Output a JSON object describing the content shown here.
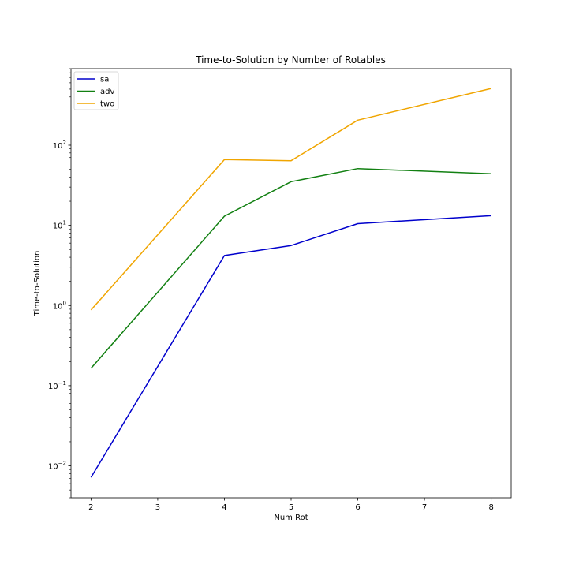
{
  "chart_data": {
    "type": "line",
    "title": "Time-to-Solution by Number of Rotables",
    "xlabel": "Num Rot",
    "ylabel": "Time-to-Solution",
    "yscale": "log",
    "xlim": [
      1.7,
      8.3
    ],
    "ylim": [
      0.004,
      900
    ],
    "x_ticks": [
      2,
      3,
      4,
      5,
      6,
      7,
      8
    ],
    "y_ticks": [
      {
        "value": 0.01,
        "base": "10",
        "exp": "−2"
      },
      {
        "value": 0.1,
        "base": "10",
        "exp": "−1"
      },
      {
        "value": 1,
        "base": "10",
        "exp": "0"
      },
      {
        "value": 10,
        "base": "10",
        "exp": "1"
      },
      {
        "value": 100,
        "base": "10",
        "exp": "2"
      }
    ],
    "grid": false,
    "legend_position": "top-left",
    "x": [
      2,
      4,
      5,
      6,
      8
    ],
    "series": [
      {
        "name": "sa",
        "color": "#0000cc",
        "values": [
          0.0072,
          4.2,
          5.6,
          10.5,
          13.2
        ]
      },
      {
        "name": "adv",
        "color": "#128012",
        "values": [
          0.165,
          13.0,
          35.0,
          51.0,
          44.0
        ]
      },
      {
        "name": "two",
        "color": "#f0a500",
        "values": [
          0.88,
          66.0,
          64.0,
          205.0,
          510.0
        ]
      }
    ]
  }
}
